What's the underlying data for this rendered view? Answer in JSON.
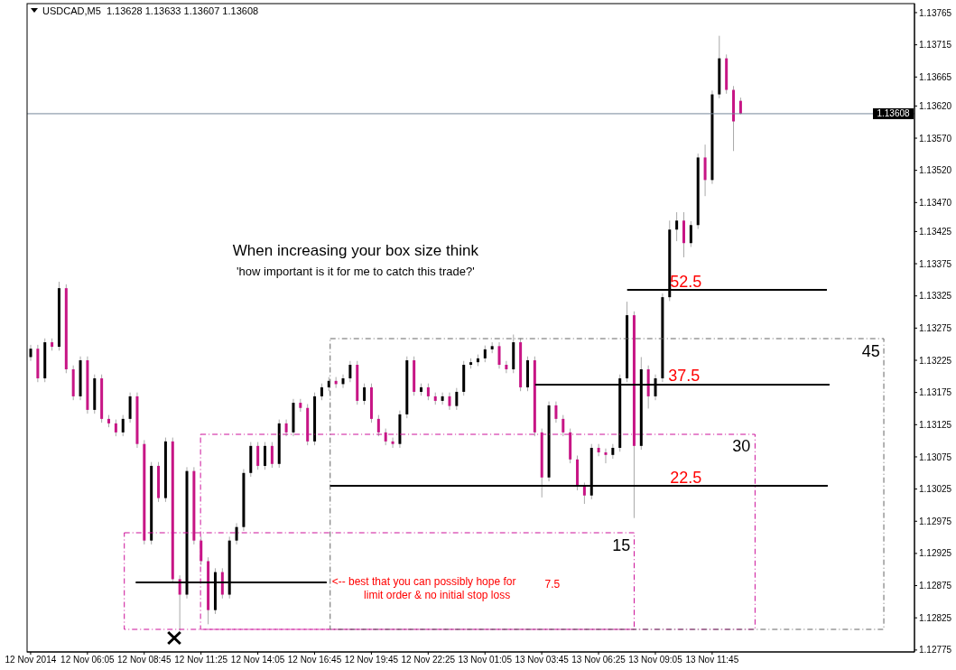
{
  "chart_data": {
    "type": "candlestick",
    "title": "USDCAD,M5  1.13628 1.13633 1.13607 1.13608",
    "categories": [
      "12 Nov 2014",
      null,
      null,
      null,
      null,
      null,
      null,
      null,
      "12 Nov 06:05",
      null,
      null,
      null,
      null,
      null,
      null,
      null,
      "12 Nov 08:45",
      null,
      null,
      null,
      null,
      null,
      null,
      null,
      "12 Nov 11:25",
      null,
      null,
      null,
      null,
      null,
      null,
      null,
      "12 Nov 14:05",
      null,
      null,
      null,
      null,
      null,
      null,
      null,
      "12 Nov 16:45",
      null,
      null,
      null,
      null,
      null,
      null,
      null,
      "12 Nov 19:45",
      null,
      null,
      null,
      null,
      null,
      null,
      null,
      "12 Nov 22:25",
      null,
      null,
      null,
      null,
      null,
      null,
      null,
      "13 Nov 01:05",
      null,
      null,
      null,
      null,
      null,
      null,
      null,
      "13 Nov 03:45",
      null,
      null,
      null,
      null,
      null,
      null,
      null,
      "13 Nov 06:25",
      null,
      null,
      null,
      null,
      null,
      null,
      null,
      "13 Nov 09:05",
      null,
      null,
      null,
      null,
      null,
      null,
      null,
      "13 Nov 11:45",
      null,
      null,
      null,
      null,
      null,
      null,
      null,
      null,
      null,
      null,
      null,
      null,
      null,
      null,
      null,
      null,
      null,
      null,
      null,
      null,
      null,
      null,
      null,
      null,
      null,
      null,
      null,
      null
    ],
    "ohlc": [
      [
        1.1323,
        1.13249,
        1.13224,
        1.13243
      ],
      [
        1.13243,
        1.13249,
        1.13191,
        1.13197
      ],
      [
        1.13197,
        1.13259,
        1.13191,
        1.13253
      ],
      [
        1.13253,
        1.13259,
        1.1324,
        1.13246
      ],
      [
        1.13246,
        1.13347,
        1.1324,
        1.13337
      ],
      [
        1.13337,
        1.13343,
        1.13205,
        1.13211
      ],
      [
        1.13211,
        1.13217,
        1.13163,
        1.13169
      ],
      [
        1.13169,
        1.13231,
        1.13163,
        1.13225
      ],
      [
        1.13225,
        1.13231,
        1.13142,
        1.13148
      ],
      [
        1.13148,
        1.13203,
        1.13142,
        1.13197
      ],
      [
        1.13197,
        1.13203,
        1.13128,
        1.13134
      ],
      [
        1.13134,
        1.1314,
        1.13121,
        1.13127
      ],
      [
        1.13127,
        1.13133,
        1.13107,
        1.13113
      ],
      [
        1.13113,
        1.1314,
        1.13107,
        1.13134
      ],
      [
        1.13134,
        1.13175,
        1.13128,
        1.13169
      ],
      [
        1.13169,
        1.13175,
        1.13089,
        1.13095
      ],
      [
        1.13095,
        1.13101,
        1.12939,
        1.12945
      ],
      [
        1.12945,
        1.13067,
        1.12939,
        1.13061
      ],
      [
        1.13061,
        1.13067,
        1.13005,
        1.13011
      ],
      [
        1.13011,
        1.13105,
        1.13005,
        1.13099
      ],
      [
        1.13099,
        1.13105,
        1.12879,
        1.12885
      ],
      [
        1.12885,
        1.12891,
        1.12805,
        1.12861
      ],
      [
        1.12861,
        1.13059,
        1.12855,
        1.13053
      ],
      [
        1.13053,
        1.13059,
        1.12939,
        1.12945
      ],
      [
        1.12945,
        1.12951,
        1.12907,
        1.12913
      ],
      [
        1.12913,
        1.12919,
        1.12815,
        1.12837
      ],
      [
        1.12837,
        1.12902,
        1.12831,
        1.12896
      ],
      [
        1.12896,
        1.12902,
        1.12855,
        1.12861
      ],
      [
        1.12861,
        1.12951,
        1.12855,
        1.12945
      ],
      [
        1.12945,
        1.12972,
        1.12939,
        1.12966
      ],
      [
        1.12966,
        1.13056,
        1.1296,
        1.1305
      ],
      [
        1.1305,
        1.13098,
        1.13044,
        1.13092
      ],
      [
        1.13092,
        1.13098,
        1.13055,
        1.13061
      ],
      [
        1.13061,
        1.13098,
        1.13055,
        1.13092
      ],
      [
        1.13092,
        1.13098,
        1.13058,
        1.13064
      ],
      [
        1.13064,
        1.13133,
        1.13058,
        1.13127
      ],
      [
        1.13127,
        1.13133,
        1.13107,
        1.13113
      ],
      [
        1.13113,
        1.13165,
        1.13107,
        1.13159
      ],
      [
        1.13159,
        1.13165,
        1.13145,
        1.13151
      ],
      [
        1.13151,
        1.13157,
        1.13093,
        1.13099
      ],
      [
        1.13099,
        1.13175,
        1.13093,
        1.13169
      ],
      [
        1.13169,
        1.13189,
        1.13163,
        1.13183
      ],
      [
        1.13183,
        1.13199,
        1.13177,
        1.13193
      ],
      [
        1.13193,
        1.13199,
        1.13182,
        1.13188
      ],
      [
        1.13188,
        1.13203,
        1.13182,
        1.13197
      ],
      [
        1.13197,
        1.13224,
        1.13191,
        1.13218
      ],
      [
        1.13218,
        1.13224,
        1.13156,
        1.13162
      ],
      [
        1.13162,
        1.13189,
        1.13156,
        1.13183
      ],
      [
        1.13183,
        1.13189,
        1.13128,
        1.13134
      ],
      [
        1.13134,
        1.1314,
        1.13107,
        1.13113
      ],
      [
        1.13113,
        1.13119,
        1.13093,
        1.13099
      ],
      [
        1.13099,
        1.13105,
        1.13089,
        1.13095
      ],
      [
        1.13095,
        1.13147,
        1.13089,
        1.13141
      ],
      [
        1.13141,
        1.13231,
        1.13135,
        1.13225
      ],
      [
        1.13225,
        1.13231,
        1.1317,
        1.13176
      ],
      [
        1.13176,
        1.13189,
        1.1317,
        1.13183
      ],
      [
        1.13183,
        1.13189,
        1.13163,
        1.13169
      ],
      [
        1.13169,
        1.13175,
        1.13156,
        1.13162
      ],
      [
        1.13162,
        1.13175,
        1.13156,
        1.13169
      ],
      [
        1.13169,
        1.13175,
        1.13148,
        1.13154
      ],
      [
        1.13154,
        1.13182,
        1.13148,
        1.13176
      ],
      [
        1.13176,
        1.13224,
        1.1317,
        1.13218
      ],
      [
        1.13218,
        1.13228,
        1.13212,
        1.13222
      ],
      [
        1.13222,
        1.13234,
        1.13216,
        1.13228
      ],
      [
        1.13228,
        1.13248,
        1.13222,
        1.13242
      ],
      [
        1.13242,
        1.13253,
        1.13236,
        1.13247
      ],
      [
        1.13247,
        1.13253,
        1.13212,
        1.13218
      ],
      [
        1.13218,
        1.13224,
        1.13205,
        1.13211
      ],
      [
        1.13211,
        1.13265,
        1.13205,
        1.13253
      ],
      [
        1.13253,
        1.13259,
        1.13177,
        1.13183
      ],
      [
        1.13183,
        1.13231,
        1.13177,
        1.13225
      ],
      [
        1.13225,
        1.13231,
        1.13107,
        1.13113
      ],
      [
        1.13113,
        1.13119,
        1.13012,
        1.13043
      ],
      [
        1.13043,
        1.13161,
        1.13037,
        1.13155
      ],
      [
        1.13155,
        1.13161,
        1.13128,
        1.13134
      ],
      [
        1.13134,
        1.1314,
        1.13107,
        1.13113
      ],
      [
        1.13113,
        1.13119,
        1.13065,
        1.13071
      ],
      [
        1.13071,
        1.13077,
        1.13023,
        1.13029
      ],
      [
        1.13029,
        1.13035,
        1.13002,
        1.13015
      ],
      [
        1.13015,
        1.13095,
        1.13009,
        1.13089
      ],
      [
        1.13089,
        1.13095,
        1.13076,
        1.13082
      ],
      [
        1.13082,
        1.13088,
        1.13065,
        1.13078
      ],
      [
        1.13078,
        1.13095,
        1.13072,
        1.13089
      ],
      [
        1.13089,
        1.13203,
        1.13083,
        1.13197
      ],
      [
        1.13197,
        1.13316,
        1.13191,
        1.13295
      ],
      [
        1.13295,
        1.13301,
        1.1298,
        1.13092
      ],
      [
        1.13092,
        1.1323,
        1.13086,
        1.13211
      ],
      [
        1.13211,
        1.13217,
        1.1315,
        1.13169
      ],
      [
        1.13169,
        1.13203,
        1.13163,
        1.13197
      ],
      [
        1.13197,
        1.13329,
        1.13191,
        1.13323
      ],
      [
        1.13323,
        1.13442,
        1.13317,
        1.13428
      ],
      [
        1.13428,
        1.13455,
        1.1341,
        1.13442
      ],
      [
        1.13442,
        1.13455,
        1.13385,
        1.13407
      ],
      [
        1.13407,
        1.13441,
        1.13401,
        1.13435
      ],
      [
        1.13435,
        1.13546,
        1.13429,
        1.1354
      ],
      [
        1.1354,
        1.1356,
        1.1348,
        1.13505
      ],
      [
        1.13505,
        1.13644,
        1.13499,
        1.13638
      ],
      [
        1.13638,
        1.13729,
        1.13632,
        1.13694
      ],
      [
        1.13694,
        1.137,
        1.13639,
        1.13645
      ],
      [
        1.13645,
        1.13651,
        1.1355,
        1.13596
      ],
      [
        1.13628,
        1.13633,
        1.13607,
        1.13608
      ],
      null,
      null,
      null,
      null,
      null,
      null,
      null,
      null,
      null,
      null,
      null,
      null,
      null,
      null,
      null,
      null,
      null,
      null,
      null,
      null,
      null,
      null,
      null,
      null
    ],
    "colors": [
      "#000000",
      "#c71585",
      "#000000",
      "#c71585",
      "#000000",
      "#c71585",
      "#c71585",
      "#000000",
      "#c71585",
      "#000000",
      "#c71585",
      "#c71585",
      "#c71585",
      "#000000",
      "#000000",
      "#c71585",
      "#c71585",
      "#000000",
      "#c71585",
      "#000000",
      "#c71585",
      "#c71585",
      "#000000",
      "#c71585",
      "#c71585",
      "#c71585",
      "#000000",
      "#c71585",
      "#000000",
      "#000000",
      "#000000",
      "#000000",
      "#c71585",
      "#000000",
      "#c71585",
      "#000000",
      "#c71585",
      "#000000",
      "#c71585",
      "#c71585",
      "#000000",
      "#000000",
      "#000000",
      "#c71585",
      "#000000",
      "#000000",
      "#c71585",
      "#000000",
      "#c71585",
      "#c71585",
      "#c71585",
      "#c71585",
      "#000000",
      "#000000",
      "#c71585",
      "#000000",
      "#c71585",
      "#c71585",
      "#000000",
      "#c71585",
      "#000000",
      "#000000",
      "#000000",
      "#000000",
      "#000000",
      "#000000",
      "#c71585",
      "#c71585",
      "#000000",
      "#c71585",
      "#000000",
      "#c71585",
      "#c71585",
      "#000000",
      "#c71585",
      "#c71585",
      "#c71585",
      "#c71585",
      "#c71585",
      "#000000",
      "#c71585",
      "#c71585",
      "#000000",
      "#000000",
      "#000000",
      "#c71585",
      "#000000",
      "#c71585",
      "#000000",
      "#000000",
      "#000000",
      "#000000",
      "#c71585",
      "#000000",
      "#000000",
      "#c71585",
      "#000000",
      "#000000",
      "#c71585",
      "#c71585",
      "#c71585",
      null,
      null,
      null,
      null,
      null,
      null,
      null,
      null,
      null,
      null,
      null,
      null,
      null,
      null,
      null,
      null,
      null,
      null,
      null,
      null,
      null,
      null,
      null,
      null
    ],
    "ylim": [
      1.12772,
      1.13779
    ],
    "yticks": [
      1.13765,
      1.13715,
      1.13665,
      {
        "value": 1.1362,
        "label": "1.13620"
      },
      {
        "value": 1.1357,
        "label": "1.13570"
      },
      {
        "value": 1.1352,
        "label": "1.13520"
      },
      {
        "value": 1.1347,
        "label": "1.13470"
      },
      1.13425,
      1.13375,
      1.13325,
      1.13275,
      1.13225,
      1.13175,
      1.13125,
      1.13075,
      1.13025,
      1.12975,
      1.12925,
      1.12875,
      1.12825,
      1.12775
    ],
    "ref_lines": [
      {
        "axis": "y",
        "value": 1.13608,
        "label": "1.13608",
        "color": "#778899"
      }
    ],
    "annotations": [
      "When increasing your box size think",
      "'how important is it for me to catch this trade?'",
      "<-- best that you can possibly hope for",
      "limit order & no initial stop loss",
      "7.5",
      "15",
      "30",
      "45",
      "52.5",
      "37.5",
      "22.5"
    ]
  }
}
